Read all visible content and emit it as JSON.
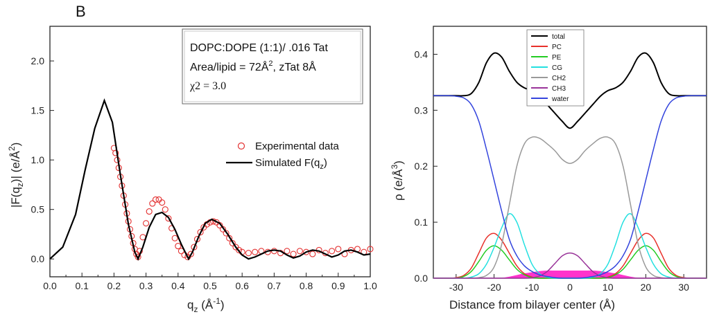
{
  "left_chart": {
    "panel_label": "B",
    "xlabel": "q",
    "xlabel_sub": "z",
    "xlabel_unit": " (Å",
    "xlabel_exp": "-1",
    "xlabel_close": ")",
    "ylabel": "|F(q",
    "ylabel_sub": "z",
    "ylabel_mid": ")| (e/Å",
    "ylabel_exp": "2",
    "ylabel_close": ")",
    "info_line1": "DOPC:DOPE (1:1)/ .016 Tat",
    "info_line2a": "Area/lipid = 72Å",
    "info_line2_exp": "2",
    "info_line2b": ", zTat 8Å",
    "info_line3": "χ2 = 3.0",
    "legend_exp": "Experimental data",
    "legend_sim": "Simulated F(q",
    "legend_sim_sub": "z",
    "legend_sim_close": ")",
    "xticks": [
      "0.0",
      "0.1",
      "0.2",
      "0.3",
      "0.4",
      "0.5",
      "0.6",
      "0.7",
      "0.8",
      "0.9",
      "1.0"
    ],
    "yticks": [
      "0.0",
      "0.5",
      "1.0",
      "1.5",
      "2.0"
    ],
    "colors": {
      "experimental": "#e33030",
      "simulated": "#000000"
    }
  },
  "right_chart": {
    "xlabel": "Distance from bilayer center (Å)",
    "ylabel": "ρ (e/Å",
    "ylabel_exp": "3",
    "ylabel_close": ")",
    "xticks": [
      "-30",
      "-20",
      "-10",
      "0",
      "10",
      "20",
      "30"
    ],
    "yticks": [
      "0.0",
      "0.1",
      "0.2",
      "0.3",
      "0.4"
    ],
    "legend": [
      {
        "name": "total",
        "color": "#000000"
      },
      {
        "name": "PC",
        "color": "#e8302a"
      },
      {
        "name": "PE",
        "color": "#22cc22"
      },
      {
        "name": "CG",
        "color": "#22e0e0"
      },
      {
        "name": "CH2",
        "color": "#999999"
      },
      {
        "name": "CH3",
        "color": "#993399"
      },
      {
        "name": "water",
        "color": "#3344dd"
      }
    ],
    "tat_color": "#ff33cc"
  },
  "chart_data": [
    {
      "type": "scatter",
      "title": "",
      "xlabel": "qz (Å-1)",
      "ylabel": "|F(qz)| (e/Å2)",
      "xlim": [
        0.0,
        1.0
      ],
      "ylim": [
        -0.18,
        2.35
      ],
      "series": [
        {
          "name": "Simulated F(qz)",
          "style": "line",
          "x": [
            0.0,
            0.04,
            0.08,
            0.11,
            0.14,
            0.17,
            0.195,
            0.22,
            0.245,
            0.265,
            0.275,
            0.29,
            0.31,
            0.33,
            0.35,
            0.37,
            0.39,
            0.41,
            0.425,
            0.433,
            0.445,
            0.465,
            0.485,
            0.505,
            0.53,
            0.555,
            0.58,
            0.6,
            0.62,
            0.64,
            0.66,
            0.68,
            0.7,
            0.72,
            0.74,
            0.76,
            0.78,
            0.8,
            0.82,
            0.84,
            0.86,
            0.88,
            0.9,
            0.92,
            0.94,
            0.96,
            0.98,
            1.0
          ],
          "y": [
            0.0,
            0.12,
            0.45,
            0.9,
            1.32,
            1.6,
            1.38,
            0.85,
            0.35,
            0.07,
            0.0,
            0.12,
            0.32,
            0.45,
            0.47,
            0.42,
            0.3,
            0.15,
            0.05,
            0.0,
            0.07,
            0.23,
            0.36,
            0.4,
            0.36,
            0.25,
            0.12,
            0.04,
            0.0,
            0.02,
            0.05,
            0.08,
            0.09,
            0.08,
            0.04,
            0.01,
            0.03,
            0.07,
            0.09,
            0.08,
            0.05,
            0.02,
            0.04,
            0.08,
            0.09,
            0.07,
            0.04,
            0.05
          ]
        },
        {
          "name": "Experimental data",
          "style": "markers",
          "x": [
            0.2,
            0.205,
            0.21,
            0.215,
            0.22,
            0.225,
            0.23,
            0.235,
            0.24,
            0.245,
            0.25,
            0.255,
            0.26,
            0.265,
            0.27,
            0.275,
            0.28,
            0.29,
            0.3,
            0.31,
            0.32,
            0.33,
            0.34,
            0.35,
            0.36,
            0.37,
            0.38,
            0.39,
            0.4,
            0.41,
            0.42,
            0.43,
            0.44,
            0.45,
            0.46,
            0.47,
            0.48,
            0.49,
            0.5,
            0.51,
            0.52,
            0.53,
            0.54,
            0.55,
            0.56,
            0.57,
            0.58,
            0.59,
            0.6,
            0.62,
            0.64,
            0.66,
            0.68,
            0.7,
            0.72,
            0.74,
            0.76,
            0.78,
            0.8,
            0.82,
            0.84,
            0.86,
            0.88,
            0.9,
            0.92,
            0.94,
            0.96,
            0.98,
            1.0
          ],
          "y": [
            1.12,
            1.07,
            1.0,
            0.92,
            0.83,
            0.74,
            0.64,
            0.55,
            0.46,
            0.38,
            0.3,
            0.23,
            0.16,
            0.1,
            0.05,
            0.02,
            0.08,
            0.22,
            0.36,
            0.48,
            0.56,
            0.6,
            0.6,
            0.57,
            0.5,
            0.41,
            0.31,
            0.21,
            0.13,
            0.08,
            0.04,
            0.02,
            0.05,
            0.12,
            0.2,
            0.27,
            0.32,
            0.35,
            0.37,
            0.38,
            0.37,
            0.34,
            0.3,
            0.26,
            0.21,
            0.16,
            0.12,
            0.09,
            0.07,
            0.06,
            0.07,
            0.08,
            0.07,
            0.08,
            0.06,
            0.08,
            0.05,
            0.08,
            0.07,
            0.05,
            0.09,
            0.06,
            0.08,
            0.1,
            0.05,
            0.09,
            0.1,
            0.07,
            0.1
          ]
        }
      ]
    },
    {
      "type": "line",
      "title": "",
      "xlabel": "Distance from bilayer center (Å)",
      "ylabel": "ρ (e/Å3)",
      "xlim": [
        -36,
        36
      ],
      "ylim": [
        0.0,
        0.45
      ],
      "x": [
        -36,
        -34,
        -32,
        -30,
        -28,
        -26,
        -24,
        -22,
        -20,
        -18,
        -16,
        -14,
        -12,
        -10,
        -8,
        -6,
        -4,
        -2,
        0,
        2,
        4,
        6,
        8,
        10,
        12,
        14,
        16,
        18,
        20,
        22,
        24,
        26,
        28,
        30,
        32,
        34,
        36
      ],
      "series": [
        {
          "name": "total",
          "values": [
            0.326,
            0.326,
            0.326,
            0.326,
            0.326,
            0.33,
            0.35,
            0.385,
            0.402,
            0.395,
            0.37,
            0.35,
            0.34,
            0.335,
            0.325,
            0.31,
            0.295,
            0.28,
            0.268,
            0.28,
            0.295,
            0.31,
            0.325,
            0.335,
            0.34,
            0.35,
            0.37,
            0.395,
            0.402,
            0.385,
            0.35,
            0.33,
            0.326,
            0.326,
            0.326,
            0.326,
            0.326
          ]
        },
        {
          "name": "PC",
          "values": [
            0.0,
            0.0,
            0.0,
            0.001,
            0.005,
            0.018,
            0.045,
            0.072,
            0.08,
            0.068,
            0.045,
            0.022,
            0.008,
            0.002,
            0.0,
            0.0,
            0.0,
            0.0,
            0.0,
            0.0,
            0.0,
            0.0,
            0.0,
            0.002,
            0.008,
            0.022,
            0.045,
            0.068,
            0.08,
            0.072,
            0.045,
            0.018,
            0.005,
            0.001,
            0.0,
            0.0,
            0.0
          ]
        },
        {
          "name": "PE",
          "values": [
            0.0,
            0.0,
            0.0,
            0.0,
            0.003,
            0.012,
            0.03,
            0.05,
            0.058,
            0.05,
            0.033,
            0.016,
            0.006,
            0.001,
            0.0,
            0.0,
            0.0,
            0.0,
            0.0,
            0.0,
            0.0,
            0.0,
            0.0,
            0.001,
            0.006,
            0.016,
            0.033,
            0.05,
            0.058,
            0.05,
            0.03,
            0.012,
            0.003,
            0.0,
            0.0,
            0.0,
            0.0
          ]
        },
        {
          "name": "CG",
          "values": [
            0.0,
            0.0,
            0.0,
            0.0,
            0.0,
            0.002,
            0.008,
            0.025,
            0.055,
            0.09,
            0.115,
            0.1,
            0.06,
            0.025,
            0.008,
            0.002,
            0.0,
            0.0,
            0.0,
            0.0,
            0.0,
            0.002,
            0.008,
            0.025,
            0.06,
            0.1,
            0.115,
            0.09,
            0.055,
            0.025,
            0.008,
            0.002,
            0.0,
            0.0,
            0.0,
            0.0,
            0.0
          ]
        },
        {
          "name": "CH2",
          "values": [
            0.0,
            0.0,
            0.0,
            0.0,
            0.0,
            0.0,
            0.001,
            0.005,
            0.02,
            0.06,
            0.13,
            0.2,
            0.24,
            0.252,
            0.25,
            0.24,
            0.228,
            0.212,
            0.205,
            0.212,
            0.228,
            0.24,
            0.25,
            0.252,
            0.24,
            0.2,
            0.13,
            0.06,
            0.02,
            0.005,
            0.001,
            0.0,
            0.0,
            0.0,
            0.0,
            0.0,
            0.0
          ]
        },
        {
          "name": "CH3",
          "values": [
            0.0,
            0.0,
            0.0,
            0.0,
            0.0,
            0.0,
            0.0,
            0.0,
            0.0,
            0.0,
            0.0,
            0.0,
            0.0,
            0.001,
            0.004,
            0.012,
            0.026,
            0.04,
            0.045,
            0.04,
            0.026,
            0.012,
            0.004,
            0.001,
            0.0,
            0.0,
            0.0,
            0.0,
            0.0,
            0.0,
            0.0,
            0.0,
            0.0,
            0.0,
            0.0,
            0.0,
            0.0
          ]
        },
        {
          "name": "water",
          "values": [
            0.326,
            0.326,
            0.326,
            0.325,
            0.322,
            0.31,
            0.28,
            0.23,
            0.175,
            0.12,
            0.07,
            0.04,
            0.022,
            0.012,
            0.006,
            0.003,
            0.001,
            0.0,
            0.0,
            0.0,
            0.001,
            0.003,
            0.006,
            0.012,
            0.022,
            0.04,
            0.07,
            0.12,
            0.175,
            0.23,
            0.28,
            0.31,
            0.322,
            0.325,
            0.326,
            0.326,
            0.326
          ]
        },
        {
          "name": "Tat",
          "values": [
            0.0,
            0.0,
            0.0,
            0.0,
            0.0,
            0.0,
            0.0,
            0.0,
            0.0,
            0.0,
            0.002,
            0.005,
            0.008,
            0.01,
            0.012,
            0.013,
            0.013,
            0.013,
            0.013,
            0.013,
            0.013,
            0.013,
            0.012,
            0.01,
            0.008,
            0.005,
            0.002,
            0.0,
            0.0,
            0.0,
            0.0,
            0.0,
            0.0,
            0.0,
            0.0,
            0.0,
            0.0
          ]
        }
      ]
    }
  ]
}
